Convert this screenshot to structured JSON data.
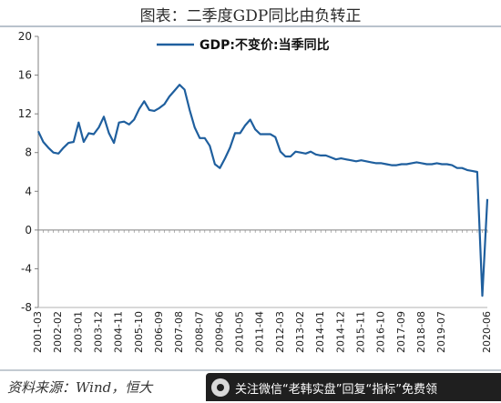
{
  "title": "图表：二季度GDP同比由负转正",
  "source": "资料来源：Wind，恒大",
  "banner": {
    "text": "关注微信“老韩实盘”回复“指标”免费领"
  },
  "chart_data": {
    "type": "line",
    "series": [
      {
        "name": "GDP:不变价:当季同比",
        "color": "#1f5f9e",
        "values": [
          10.2,
          9.1,
          8.5,
          8.0,
          7.9,
          8.5,
          9.0,
          9.1,
          11.1,
          9.1,
          10.0,
          9.9,
          10.6,
          11.7,
          10.0,
          9.0,
          11.1,
          11.2,
          10.9,
          11.4,
          12.5,
          13.3,
          12.4,
          12.3,
          12.6,
          13.0,
          13.8,
          14.4,
          15.0,
          14.5,
          12.4,
          10.6,
          9.5,
          9.5,
          8.7,
          6.8,
          6.4,
          7.4,
          8.5,
          10.0,
          10.0,
          10.8,
          11.4,
          10.4,
          9.9,
          9.9,
          9.9,
          9.6,
          8.1,
          7.6,
          7.6,
          8.1,
          8.0,
          7.9,
          8.1,
          7.8,
          7.7,
          7.7,
          7.5,
          7.3,
          7.4,
          7.3,
          7.2,
          7.1,
          7.2,
          7.1,
          7.0,
          6.9,
          6.9,
          6.8,
          6.7,
          6.7,
          6.8,
          6.8,
          6.9,
          7.0,
          6.9,
          6.8,
          6.8,
          6.9,
          6.8,
          6.8,
          6.7,
          6.4,
          6.4,
          6.2,
          6.1,
          6.0,
          -6.8,
          3.2
        ]
      }
    ],
    "x_tick_labels": [
      "2001-03",
      "2002-02",
      "2003-01",
      "2003-12",
      "2004-11",
      "2005-10",
      "2006-09",
      "2007-08",
      "2008-07",
      "2009-06",
      "2010-05",
      "2011-04",
      "2012-03",
      "2013-02",
      "2014-01",
      "2014-12",
      "2015-11",
      "2016-10",
      "2017-09",
      "2018-08",
      "2019-07",
      "2020-06"
    ],
    "x_tick_index": [
      0,
      4,
      8,
      12,
      16,
      20,
      24,
      28,
      32,
      36,
      40,
      44,
      48,
      52,
      56,
      60,
      64,
      68,
      72,
      76,
      80,
      89
    ],
    "y_ticks": [
      -8,
      -4,
      0,
      4,
      8,
      12,
      16,
      20
    ],
    "ylim": [
      -8,
      20
    ],
    "legend_position": "top-left",
    "grid": false
  }
}
